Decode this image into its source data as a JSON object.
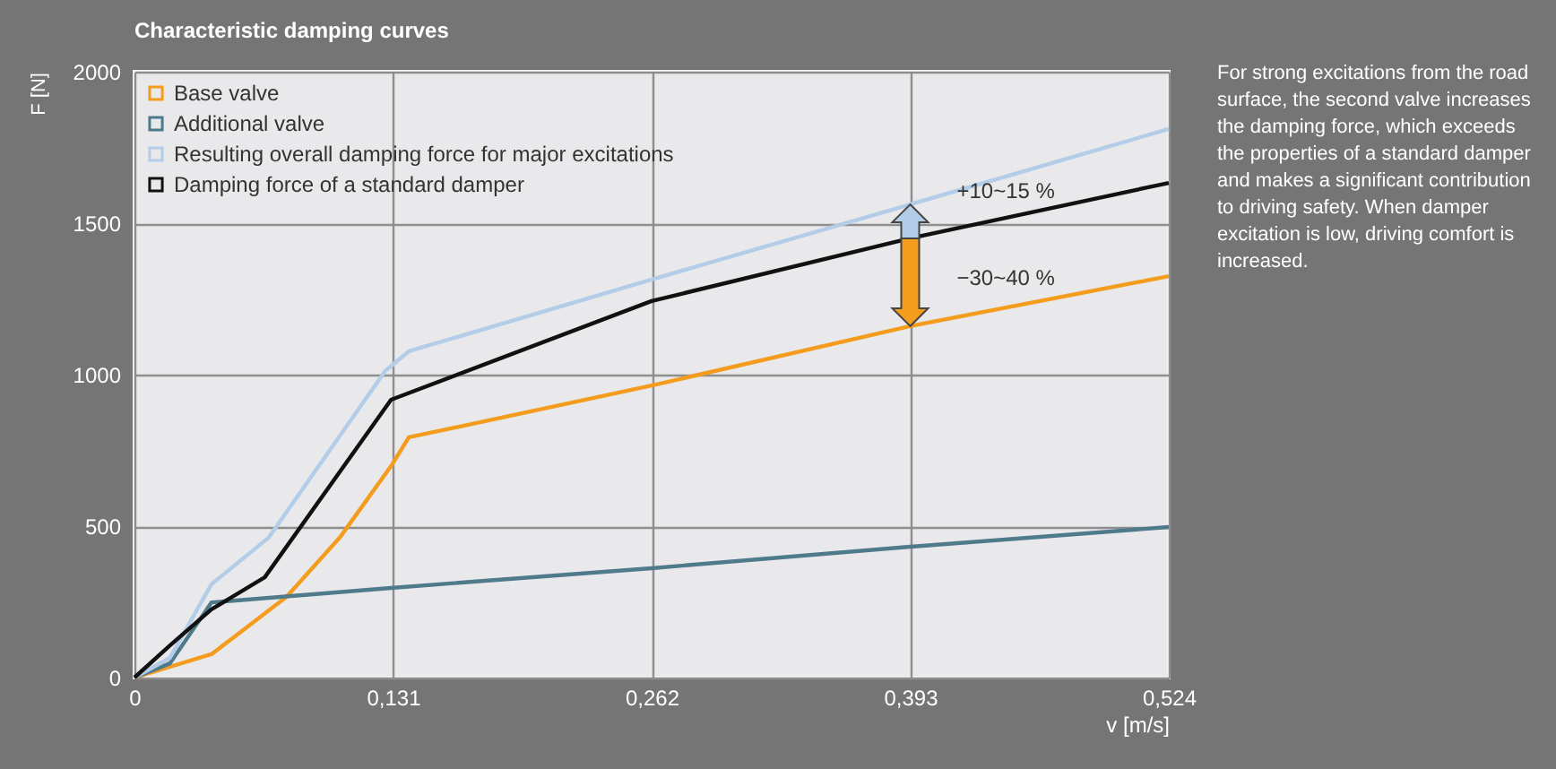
{
  "chart_data": {
    "type": "line",
    "title": "Characteristic damping curves",
    "xlabel": "v [m/s]",
    "ylabel": "F [N]",
    "xlim": [
      0,
      0.524
    ],
    "xticks": [
      0,
      {
        "value": 0.131,
        "label": "0,131"
      },
      {
        "value": 0.262,
        "label": "0,262"
      },
      {
        "value": 0.393,
        "label": "0,393"
      },
      {
        "value": 0.524,
        "label": "0,524"
      }
    ],
    "ylim": [
      0,
      2000
    ],
    "yticks": [
      0,
      500,
      1000,
      1500,
      2000
    ],
    "grid": true,
    "legend": "top left",
    "line_style": "solid",
    "series": [
      {
        "name": "Base valve",
        "color": "#f39c1e",
        "x": [
          0,
          0.039,
          0.077,
          0.104,
          0.13,
          0.139,
          0.262,
          0.393,
          0.524
        ],
        "values": [
          0,
          77,
          266,
          462,
          698,
          793,
          964,
          1160,
          1325
        ]
      },
      {
        "name": "Additional valve",
        "color": "#4f7a8c",
        "x": [
          0,
          0.018,
          0.039,
          0.13,
          0.262,
          0.393,
          0.524
        ],
        "values": [
          0,
          47,
          248,
          296,
          361,
          432,
          497
        ]
      },
      {
        "name": "Resulting overall damping force for major excitations",
        "color": "#b3cde8",
        "x": [
          0,
          0.018,
          0.039,
          0.068,
          0.127,
          0.139,
          0.262,
          0.393,
          0.524
        ],
        "values": [
          0,
          65,
          308,
          462,
          1012,
          1077,
          1314,
          1562,
          1811
        ]
      },
      {
        "name": "Damping force of a standard damper",
        "color": "#111111",
        "x": [
          0,
          0.018,
          0.039,
          0.066,
          0.13,
          0.262,
          0.393,
          0.524
        ],
        "values": [
          0,
          106,
          225,
          331,
          917,
          1243,
          1450,
          1633
        ]
      }
    ],
    "annotations": [
      "+10~15 %",
      "−30~40 %",
      "For strong excitations from the road surface, the second valve increases the damping force, which exceeds the properties of a standard damper and makes a significant contribution to driving safety. When damper excitation is low, driving comfort is increased."
    ]
  }
}
